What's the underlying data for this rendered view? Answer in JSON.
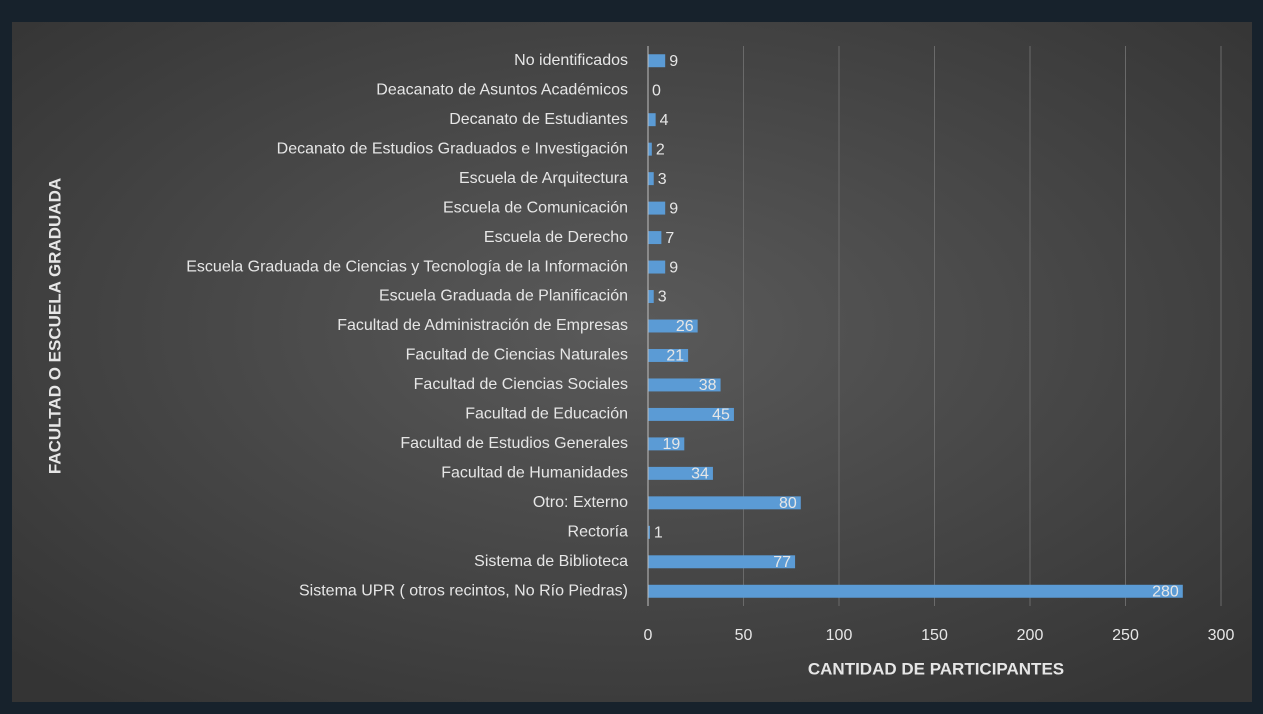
{
  "chart_data": {
    "type": "bar",
    "orientation": "horizontal",
    "xlabel": "CANTIDAD DE PARTICIPANTES",
    "ylabel": "FACULTAD O ESCUELA GRADUADA",
    "categories": [
      "No identificados",
      "Deacanato de Asuntos Académicos",
      "Decanato de Estudiantes",
      "Decanato de Estudios Graduados e Investigación",
      "Escuela de Arquitectura",
      "Escuela de Comunicación",
      "Escuela de Derecho",
      "Escuela Graduada de Ciencias y Tecnología de la Información",
      "Escuela Graduada de Planificación",
      "Facultad de Administración de Empresas",
      "Facultad de Ciencias Naturales",
      "Facultad de Ciencias Sociales",
      "Facultad de Educación",
      "Facultad de Estudios Generales",
      "Facultad de Humanidades",
      "Otro: Externo",
      "Rectoría",
      "Sistema de Biblioteca",
      "Sistema UPR ( otros recintos, No Río Piedras)"
    ],
    "values": [
      9,
      0,
      4,
      2,
      3,
      9,
      7,
      9,
      3,
      26,
      21,
      38,
      45,
      19,
      34,
      80,
      1,
      77,
      280
    ],
    "color": "#5b9bd5",
    "xlim": [
      0,
      300
    ],
    "xticks": [
      0,
      50,
      100,
      150,
      200,
      250,
      300
    ],
    "grid": true
  }
}
